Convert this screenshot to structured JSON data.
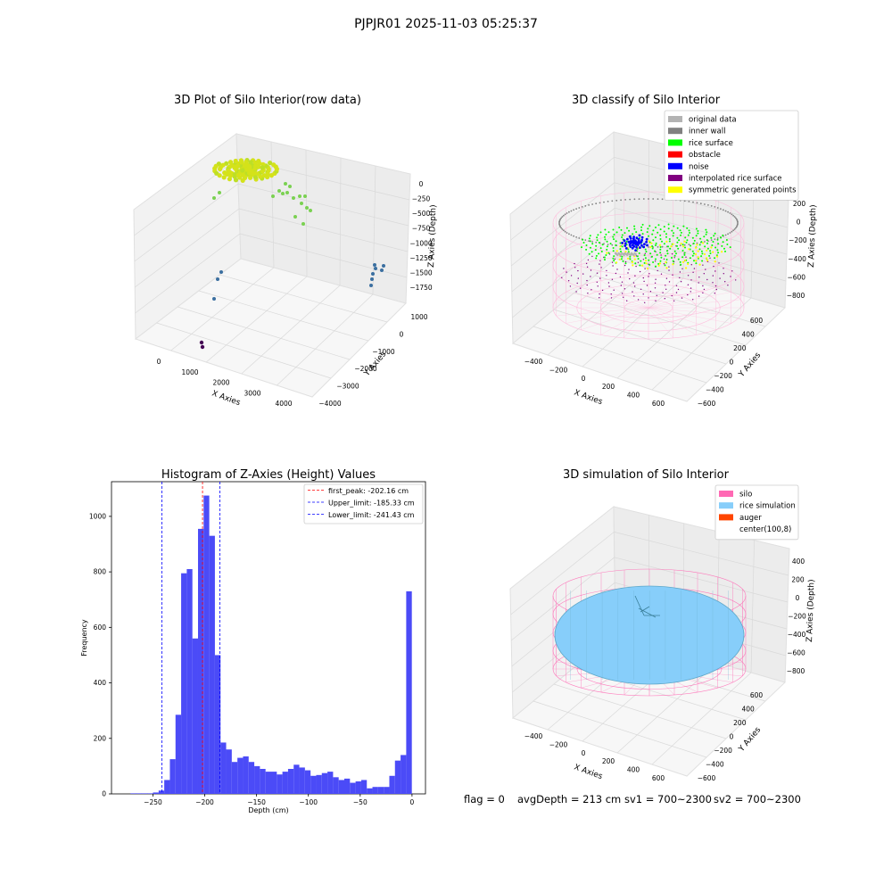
{
  "figure": {
    "suptitle": "PJPJR01 2025-11-03 05:25:37",
    "footer": {
      "flag": "flag = 0",
      "avg_depth": "avgDepth = 213 cm",
      "sv1": "sv1 = 700~2300",
      "sv2": "sv2 = 700~2300"
    }
  },
  "colors": {
    "bar": "#4b4bf7",
    "first_peak_line": "#ff0000",
    "limit_line": "#0000ff",
    "pane": "#f2f2f2",
    "grid": "#d9d9d9",
    "silo_mesh": "#ff69b4",
    "rice_surface_sim": "#87cefa",
    "point_original": "#b3b3b3",
    "point_inner_wall": "#808080",
    "point_rice": "#00ff00",
    "point_obstacle": "#ff0000",
    "point_noise": "#0000ff",
    "point_interp": "#800080",
    "point_symmetric": "#ffff00",
    "auger": "#ff4500"
  },
  "panel_raw": {
    "title": "3D Plot of Silo Interior(row data)",
    "xlabel": "X Axies",
    "ylabel": "Y Axies",
    "zlabel": "Z Axies (Depth)",
    "x_ticks": [
      "0",
      "1000",
      "2000",
      "3000",
      "4000"
    ],
    "y_ticks": [
      "1000",
      "0",
      "−1000",
      "−2000",
      "−3000",
      "−4000"
    ],
    "z_ticks": [
      "0",
      "−250",
      "−500",
      "−750",
      "−1000",
      "−1250",
      "−1500",
      "−1750"
    ]
  },
  "panel_classify": {
    "title": "3D classify of Silo Interior",
    "xlabel": "X Axies",
    "ylabel": "Y Axies",
    "zlabel": "Z Axies (Depth)",
    "x_ticks": [
      "−400",
      "−200",
      "0",
      "200",
      "400",
      "600"
    ],
    "y_ticks": [
      "600",
      "400",
      "200",
      "0",
      "−200",
      "−400",
      "−600"
    ],
    "z_ticks": [
      "200",
      "0",
      "−200",
      "−400",
      "−600",
      "−800"
    ],
    "legend": [
      {
        "label": "original data",
        "color": "#b3b3b3"
      },
      {
        "label": "inner wall",
        "color": "#808080"
      },
      {
        "label": "rice surface",
        "color": "#00ff00"
      },
      {
        "label": "obstacle",
        "color": "#ff0000"
      },
      {
        "label": "noise",
        "color": "#0000ff"
      },
      {
        "label": "interpolated rice surface",
        "color": "#800080"
      },
      {
        "label": "symmetric generated points",
        "color": "#ffff00"
      }
    ]
  },
  "panel_sim": {
    "title": "3D simulation of Silo Interior",
    "xlabel": "X Axies",
    "ylabel": "Y Axies",
    "zlabel": "Z Axies (Depth)",
    "x_ticks": [
      "−400",
      "−200",
      "0",
      "200",
      "400",
      "600"
    ],
    "y_ticks": [
      "600",
      "400",
      "200",
      "0",
      "−200",
      "−400",
      "−600"
    ],
    "z_ticks": [
      "400",
      "200",
      "0",
      "−200",
      "−400",
      "−600",
      "−800"
    ],
    "legend": [
      {
        "label": "silo",
        "color": "#ff69b4"
      },
      {
        "label": "rice simulation",
        "color": "#87cefa"
      },
      {
        "label": "auger",
        "color": "#ff4500"
      },
      {
        "label": "center(100,8)",
        "color": ""
      }
    ]
  },
  "chart_data": {
    "type": "bar",
    "title": "Histogram of Z-Axies (Height) Values",
    "xlabel": "Depth (cm)",
    "ylabel": "Frequency",
    "xlim": [
      -290,
      13
    ],
    "ylim": [
      0,
      1125
    ],
    "x_ticks": [
      -250,
      -200,
      -150,
      -100,
      -50,
      0
    ],
    "x_tick_labels": [
      "−250",
      "−200",
      "−150",
      "−100",
      "−50",
      "0"
    ],
    "y_ticks": [
      0,
      200,
      400,
      600,
      800,
      1000
    ],
    "y_tick_labels": [
      "0",
      "200",
      "400",
      "600",
      "800",
      "1000"
    ],
    "bin_start": -271.67,
    "bin_width": 5.43,
    "values": [
      2,
      2,
      2,
      2,
      5,
      12,
      50,
      125,
      285,
      795,
      810,
      560,
      955,
      1075,
      930,
      500,
      185,
      160,
      115,
      130,
      135,
      115,
      100,
      90,
      80,
      80,
      70,
      80,
      90,
      105,
      95,
      85,
      65,
      68,
      75,
      80,
      60,
      50,
      55,
      40,
      45,
      50,
      20,
      25,
      25,
      25,
      65,
      120,
      140,
      730
    ],
    "lines": [
      {
        "label": "first_peak: -202.16 cm",
        "x": -202.16,
        "color": "#ff0000"
      },
      {
        "label": "Upper_limit: -185.33 cm",
        "x": -185.33,
        "color": "#0000ff"
      },
      {
        "label": "Lower_limit: -241.43 cm",
        "x": -241.43,
        "color": "#0000ff"
      }
    ],
    "legend_position": "top-right",
    "grid": false
  }
}
